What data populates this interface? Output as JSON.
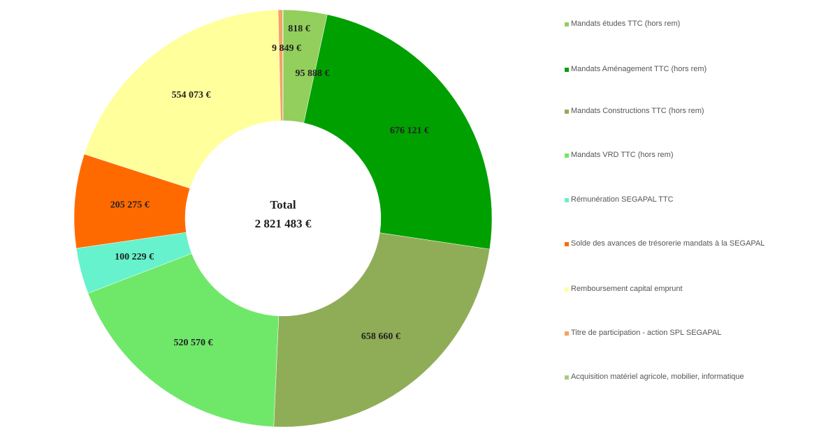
{
  "chart_data": {
    "type": "donut",
    "categories": [
      "Mandats études TTC (hors rem)",
      "Mandats Aménagement TTC (hors rem)",
      "Mandats Constructions TTC (hors rem)",
      "Mandats VRD TTC (hors rem)",
      "Rémunération SEGAPAL TTC",
      "Solde des avances de trésorerie mandats à la SEGAPAL",
      "Remboursement capital emprunt",
      "Titre de participation - action SPL SEGAPAL",
      "Acquisition matériel agricole, mobilier, informatique"
    ],
    "values": [
      95888,
      676121,
      658660,
      520570,
      100229,
      205275,
      554073,
      9849,
      818
    ],
    "value_labels": [
      "95 888 €",
      "676 121 €",
      "658 660 €",
      "520 570 €",
      "100 229 €",
      "205 275 €",
      "554 073 €",
      "9 849 €",
      "818 €"
    ],
    "colors": [
      "#92cf5c",
      "#00a000",
      "#8fad57",
      "#6fe86a",
      "#66f2cc",
      "#ff6a00",
      "#ffff9c",
      "#f4a361",
      "#a9c98a"
    ],
    "center_title": "Total",
    "total": 2821483,
    "total_label": "2 821 483 €"
  }
}
